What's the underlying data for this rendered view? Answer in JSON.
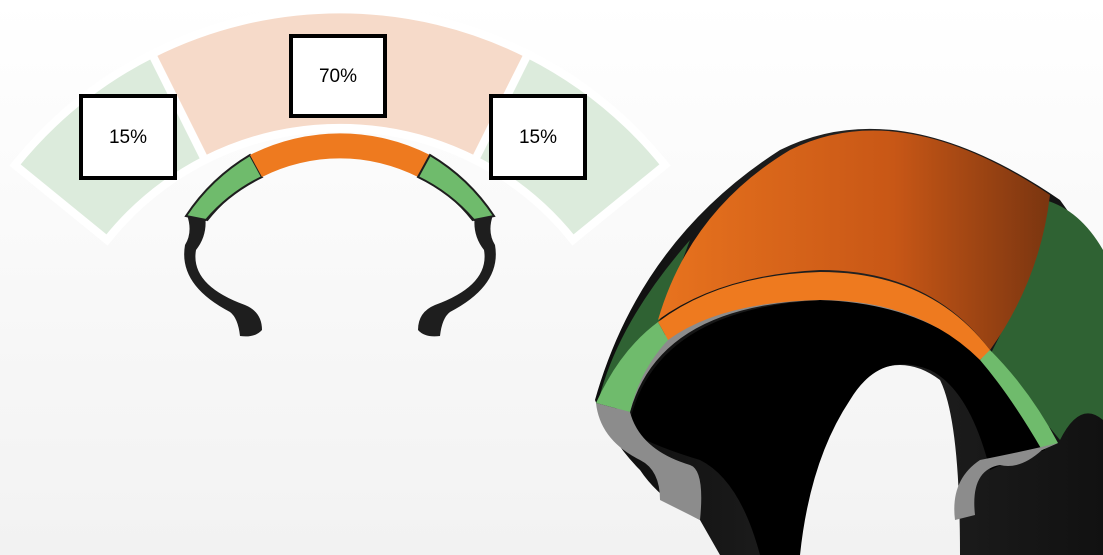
{
  "segments": [
    {
      "label": "15%"
    },
    {
      "label": "70%"
    },
    {
      "label": "15%"
    }
  ]
}
